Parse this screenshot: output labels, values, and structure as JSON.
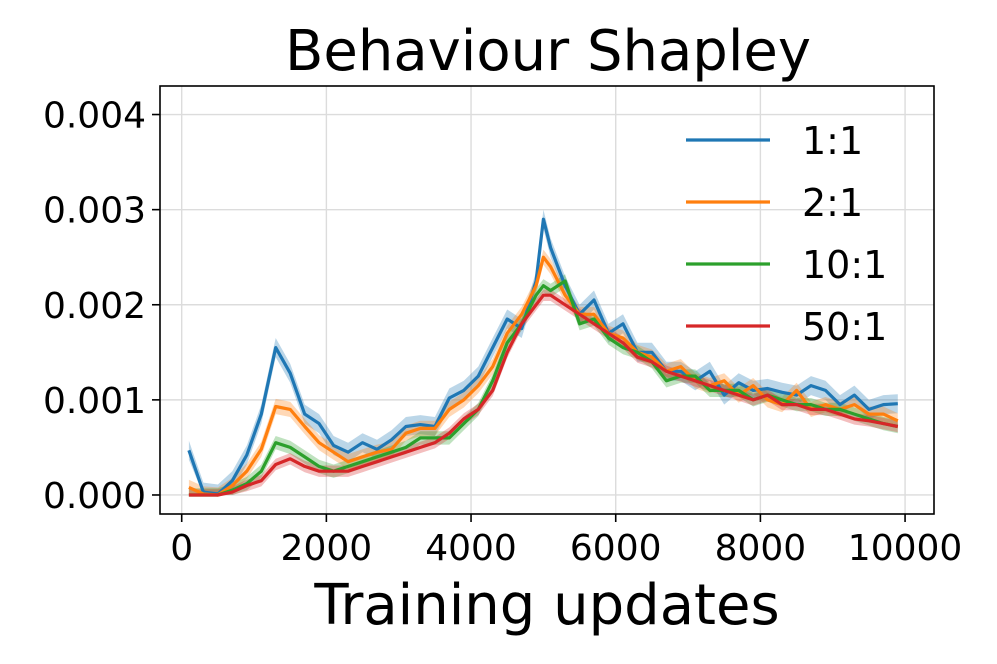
{
  "chart_data": {
    "type": "line",
    "title": "Behaviour Shapley",
    "xlabel": "Training updates",
    "ylabel": "",
    "xlim": [
      -300,
      10400
    ],
    "ylim": [
      -0.0002,
      0.0043
    ],
    "xticks": [
      0,
      2000,
      4000,
      6000,
      8000,
      10000
    ],
    "yticks": [
      0.0,
      0.001,
      0.002,
      0.003,
      0.004
    ],
    "xtick_labels": [
      "0",
      "2000",
      "4000",
      "6000",
      "8000",
      "10000"
    ],
    "ytick_labels": [
      "0.000",
      "0.001",
      "0.002",
      "0.003",
      "0.004"
    ],
    "grid": true,
    "legend_position": "top-right",
    "series": [
      {
        "name": "1:1",
        "color": "#1f77b4",
        "band": 0.0001,
        "x": [
          100,
          300,
          500,
          700,
          900,
          1100,
          1300,
          1500,
          1700,
          1900,
          2100,
          2300,
          2500,
          2700,
          2900,
          3100,
          3300,
          3500,
          3700,
          3900,
          4100,
          4300,
          4500,
          4700,
          4900,
          5000,
          5100,
          5300,
          5500,
          5700,
          5900,
          6100,
          6300,
          6500,
          6700,
          6900,
          7100,
          7300,
          7500,
          7700,
          7900,
          8100,
          8300,
          8500,
          8700,
          8900,
          9100,
          9300,
          9500,
          9700,
          9900
        ],
        "y": [
          0.00047,
          3e-05,
          1e-05,
          0.00015,
          0.00042,
          0.00085,
          0.00155,
          0.00128,
          0.00085,
          0.00075,
          0.00052,
          0.00045,
          0.00055,
          0.00048,
          0.00058,
          0.00072,
          0.00074,
          0.00072,
          0.00102,
          0.0011,
          0.00125,
          0.00155,
          0.00185,
          0.00175,
          0.00225,
          0.0029,
          0.0026,
          0.0022,
          0.0019,
          0.00205,
          0.0017,
          0.0018,
          0.0015,
          0.0015,
          0.0013,
          0.0013,
          0.0012,
          0.0013,
          0.00105,
          0.00118,
          0.0011,
          0.00112,
          0.00108,
          0.00105,
          0.00115,
          0.0011,
          0.00095,
          0.00105,
          0.0009,
          0.00095,
          0.00096
        ]
      },
      {
        "name": "2:1",
        "color": "#ff7f0e",
        "band": 8e-05,
        "x": [
          100,
          300,
          500,
          700,
          900,
          1100,
          1300,
          1500,
          1700,
          1900,
          2100,
          2300,
          2500,
          2700,
          2900,
          3100,
          3300,
          3500,
          3700,
          3900,
          4100,
          4300,
          4500,
          4700,
          4900,
          5000,
          5100,
          5300,
          5500,
          5700,
          5900,
          6100,
          6300,
          6500,
          6700,
          6900,
          7100,
          7300,
          7500,
          7700,
          7900,
          8100,
          8300,
          8500,
          8700,
          8900,
          9100,
          9300,
          9500,
          9700,
          9900
        ],
        "y": [
          8e-05,
          1e-05,
          0.0,
          0.0001,
          0.00025,
          0.00048,
          0.00093,
          0.0009,
          0.00072,
          0.00055,
          0.00045,
          0.00035,
          0.0004,
          0.00045,
          0.00048,
          0.00065,
          0.0007,
          0.0007,
          0.0009,
          0.001,
          0.00115,
          0.00135,
          0.0017,
          0.0019,
          0.0022,
          0.0025,
          0.0024,
          0.0021,
          0.0019,
          0.0019,
          0.0017,
          0.00165,
          0.0015,
          0.00145,
          0.0013,
          0.00135,
          0.0012,
          0.00115,
          0.0012,
          0.00105,
          0.00115,
          0.001,
          0.00095,
          0.0011,
          0.0009,
          0.00095,
          0.0009,
          0.00095,
          0.00085,
          0.00085,
          0.00078
        ]
      },
      {
        "name": "10:1",
        "color": "#2ca02c",
        "band": 7e-05,
        "x": [
          100,
          300,
          500,
          700,
          900,
          1100,
          1300,
          1500,
          1700,
          1900,
          2100,
          2300,
          2500,
          2700,
          2900,
          3100,
          3300,
          3500,
          3700,
          3900,
          4100,
          4300,
          4500,
          4700,
          4900,
          5000,
          5100,
          5300,
          5500,
          5700,
          5900,
          6100,
          6300,
          6500,
          6700,
          6900,
          7100,
          7300,
          7500,
          7700,
          7900,
          8100,
          8300,
          8500,
          8700,
          8900,
          9100,
          9300,
          9500,
          9700,
          9900
        ],
        "y": [
          0.0,
          0.0,
          0.0,
          5e-05,
          0.00012,
          0.00025,
          0.00055,
          0.0005,
          0.0004,
          0.0003,
          0.00025,
          0.0003,
          0.00035,
          0.0004,
          0.00045,
          0.0005,
          0.0006,
          0.0006,
          0.0006,
          0.00075,
          0.0009,
          0.0012,
          0.0016,
          0.0018,
          0.0021,
          0.0022,
          0.00215,
          0.00225,
          0.0018,
          0.00185,
          0.00165,
          0.00155,
          0.0015,
          0.0014,
          0.0012,
          0.00125,
          0.00125,
          0.0011,
          0.0011,
          0.0011,
          0.001,
          0.00105,
          0.001,
          0.00095,
          0.00095,
          0.0009,
          0.0009,
          0.00085,
          0.0008,
          0.00075,
          0.00072
        ]
      },
      {
        "name": "50:1",
        "color": "#d62728",
        "band": 6e-05,
        "x": [
          100,
          300,
          500,
          700,
          900,
          1100,
          1300,
          1500,
          1700,
          1900,
          2100,
          2300,
          2500,
          2700,
          2900,
          3100,
          3300,
          3500,
          3700,
          3900,
          4100,
          4300,
          4500,
          4700,
          4900,
          5000,
          5100,
          5300,
          5500,
          5700,
          5900,
          6100,
          6300,
          6500,
          6700,
          6900,
          7100,
          7300,
          7500,
          7700,
          7900,
          8100,
          8300,
          8500,
          8700,
          8900,
          9100,
          9300,
          9500,
          9700,
          9900
        ],
        "y": [
          0.0,
          0.0,
          0.0,
          3e-05,
          0.0001,
          0.00015,
          0.00032,
          0.00038,
          0.0003,
          0.00025,
          0.00025,
          0.00025,
          0.0003,
          0.00035,
          0.0004,
          0.00045,
          0.0005,
          0.00055,
          0.00065,
          0.0008,
          0.0009,
          0.0011,
          0.0015,
          0.0018,
          0.002,
          0.0021,
          0.0021,
          0.002,
          0.0019,
          0.0018,
          0.0017,
          0.0016,
          0.00145,
          0.0014,
          0.0013,
          0.00125,
          0.0012,
          0.00115,
          0.0011,
          0.00105,
          0.001,
          0.00105,
          0.00095,
          0.00095,
          0.0009,
          0.0009,
          0.00085,
          0.0008,
          0.00078,
          0.00075,
          0.00072
        ]
      }
    ]
  }
}
